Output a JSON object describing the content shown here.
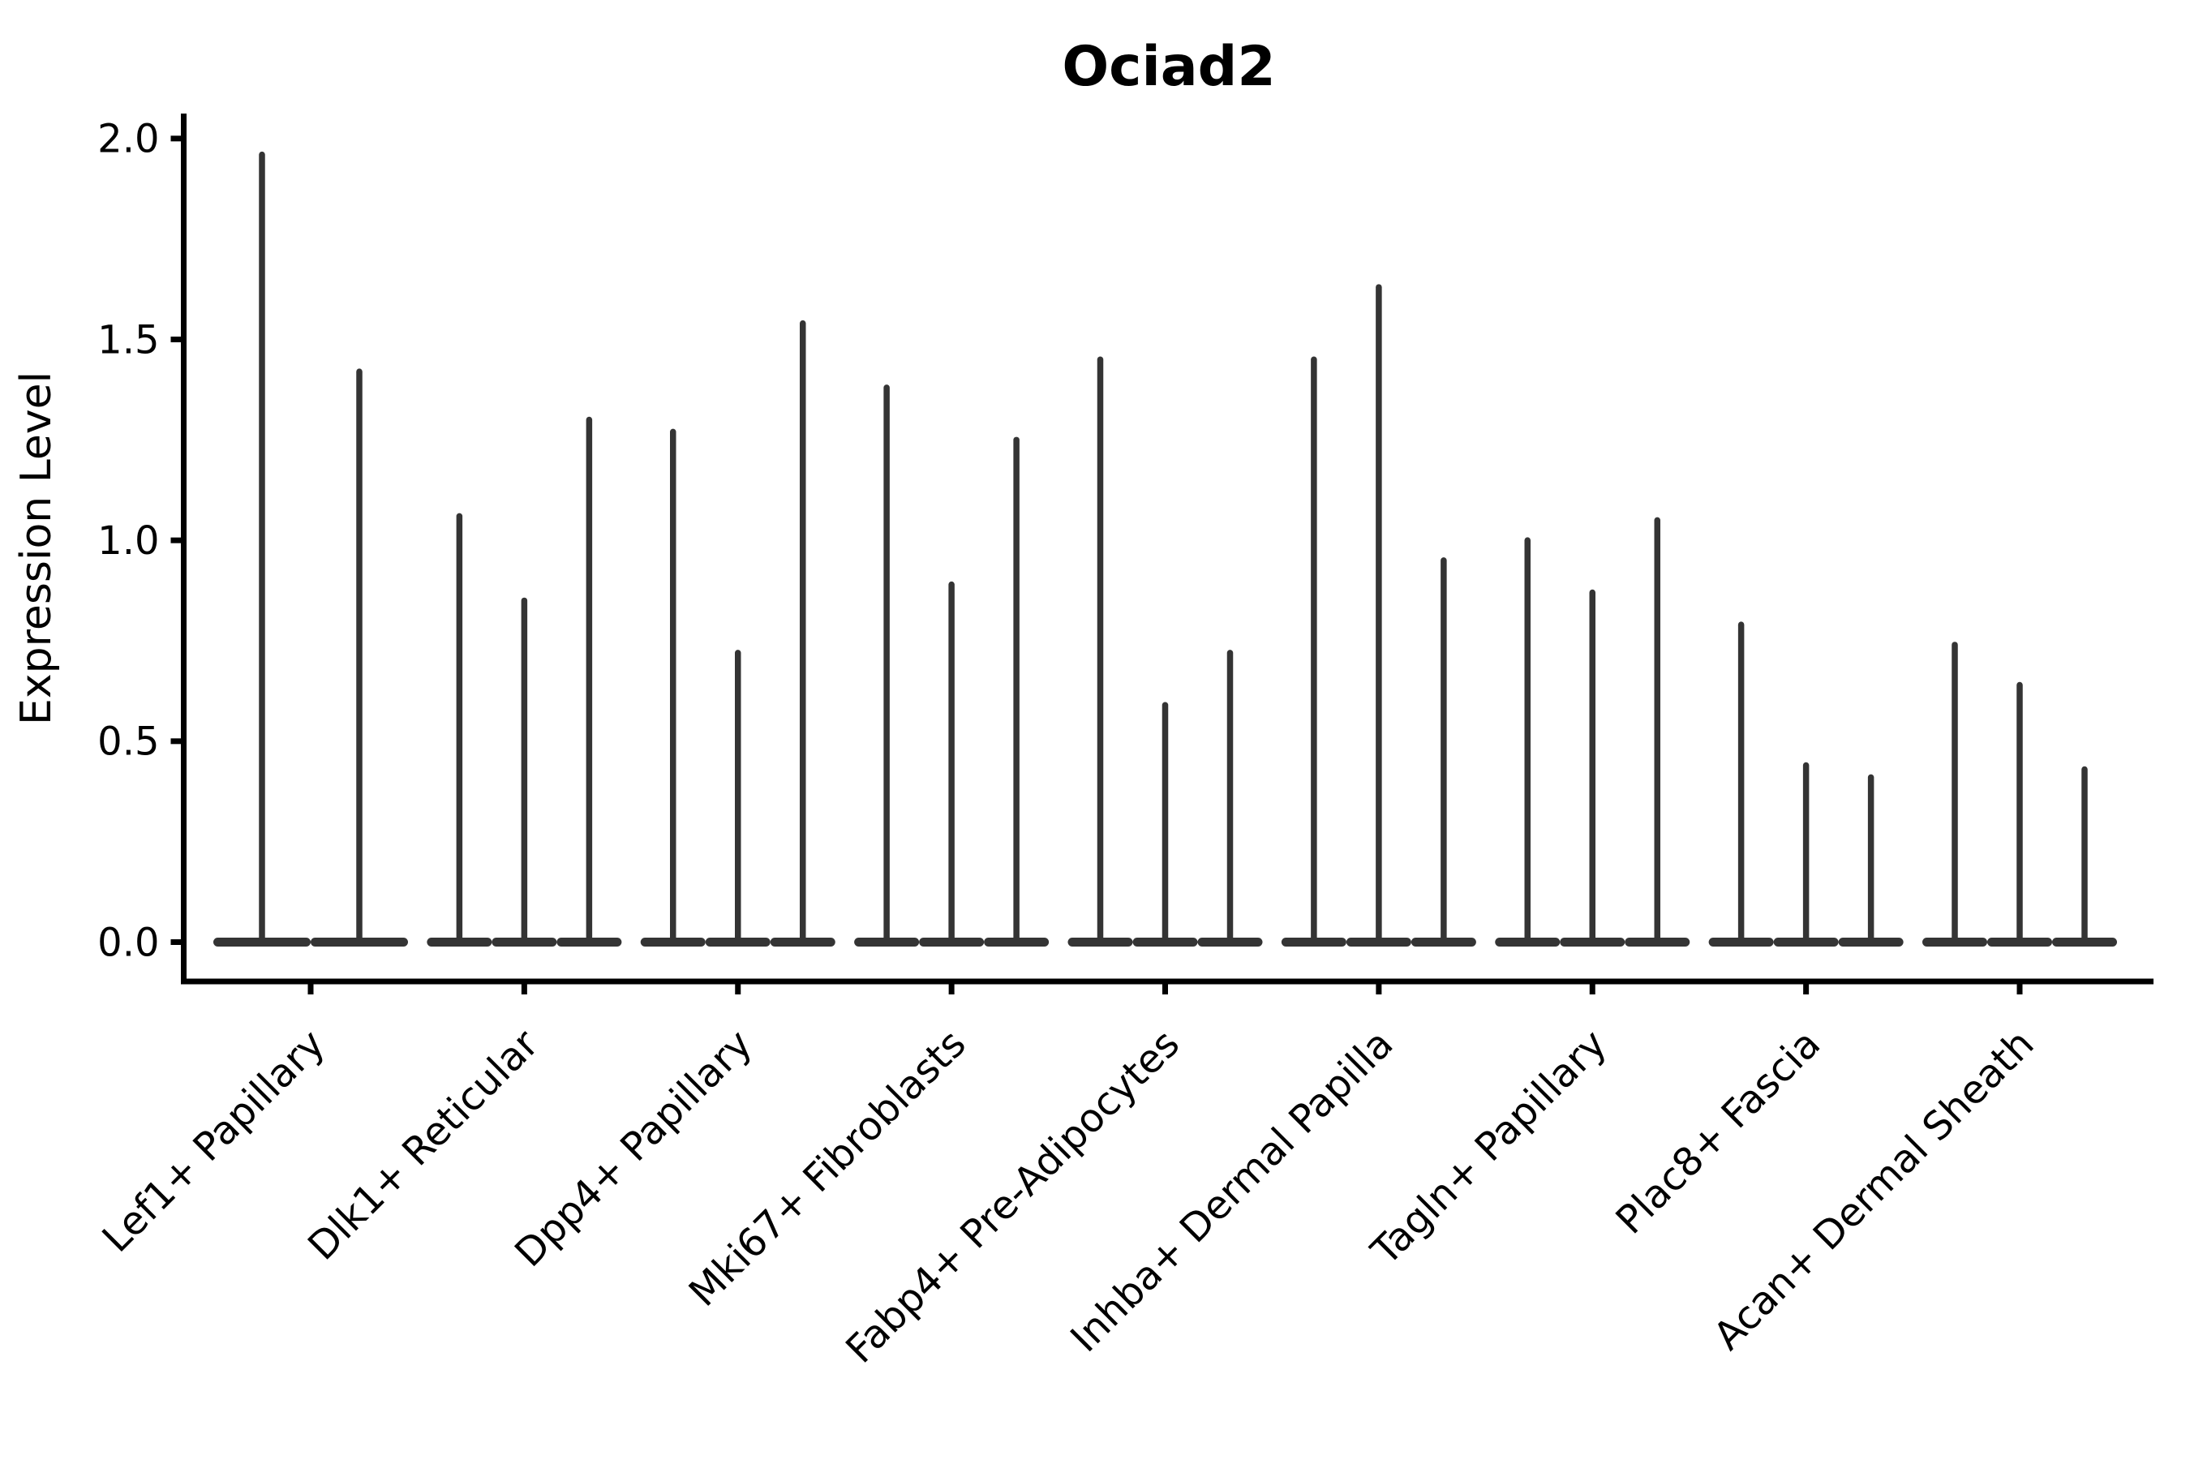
{
  "chart_data": {
    "type": "violin",
    "title": "Ociad2",
    "xlabel": "",
    "ylabel": "Expression Level",
    "ylim": [
      -0.1,
      2.06
    ],
    "grid": false,
    "legend": "none",
    "yticks": [
      0.0,
      0.5,
      1.0,
      1.5,
      2.0
    ],
    "ytick_labels": [
      "0.0",
      "0.5",
      "1.0",
      "1.5",
      "2.0"
    ],
    "categories": [
      "Lef1+ Papillary",
      "Dlk1+ Reticular",
      "Dpp4+ Papillary",
      "Mki67+ Fibroblasts",
      "Fabp4+ Pre-Adipocytes",
      "Inhba+ Dermal Papilla",
      "Tagln+ Papillary",
      "Plac8+ Fascia",
      "Acan+ Dermal Sheath"
    ],
    "groups": [
      {
        "label": "Lef1+ Papillary",
        "violin_max_values": [
          1.96,
          1.42
        ]
      },
      {
        "label": "Dlk1+ Reticular",
        "violin_max_values": [
          1.06,
          0.85,
          1.3
        ]
      },
      {
        "label": "Dpp4+ Papillary",
        "violin_max_values": [
          1.27,
          0.72,
          1.54
        ]
      },
      {
        "label": "Mki67+ Fibroblasts",
        "violin_max_values": [
          1.38,
          0.89,
          1.25
        ]
      },
      {
        "label": "Fabp4+ Pre-Adipocytes",
        "violin_max_values": [
          1.45,
          0.59,
          0.72
        ]
      },
      {
        "label": "Inhba+ Dermal Papilla",
        "violin_max_values": [
          1.45,
          1.63,
          0.95
        ]
      },
      {
        "label": "Tagln+ Papillary",
        "violin_max_values": [
          1.0,
          0.87,
          1.05
        ]
      },
      {
        "label": "Plac8+ Fascia",
        "violin_max_values": [
          0.79,
          0.44,
          0.41
        ]
      },
      {
        "label": "Acan+ Dermal Sheath",
        "violin_max_values": [
          0.74,
          0.64,
          0.43
        ]
      }
    ],
    "violin_note": "each violin is a near-zero-width spike: wide flat base at 0, thin line up to max expression"
  },
  "colors": {
    "background": "#ffffff",
    "violin_stroke": "#343434",
    "axis": "#000000",
    "text": "#000000"
  }
}
